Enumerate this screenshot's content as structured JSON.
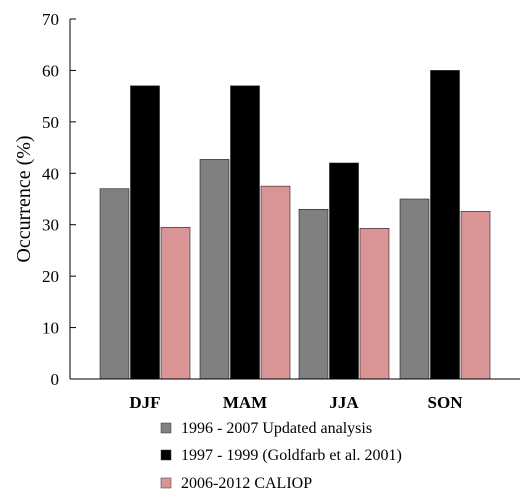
{
  "chart_data": {
    "type": "bar",
    "title": "",
    "xlabel": "",
    "ylabel": "Occurrence (%)",
    "ylim": [
      0,
      70
    ],
    "yticks": [
      0,
      10,
      20,
      30,
      40,
      50,
      60,
      70
    ],
    "categories": [
      "DJF",
      "MAM",
      "JJA",
      "SON"
    ],
    "grid": false,
    "legend_position": "bottom",
    "series": [
      {
        "name": "1996 - 2007 Updated analysis",
        "color": "#808080",
        "values": [
          37,
          42.7,
          33,
          35
        ]
      },
      {
        "name": "1997 - 1999 (Goldfarb et al. 2001)",
        "color": "#000000",
        "values": [
          57,
          57,
          42,
          60
        ]
      },
      {
        "name": "2006-2012 CALIOP",
        "color": "#d99595",
        "values": [
          29.5,
          37.5,
          29.3,
          32.6
        ]
      }
    ]
  }
}
